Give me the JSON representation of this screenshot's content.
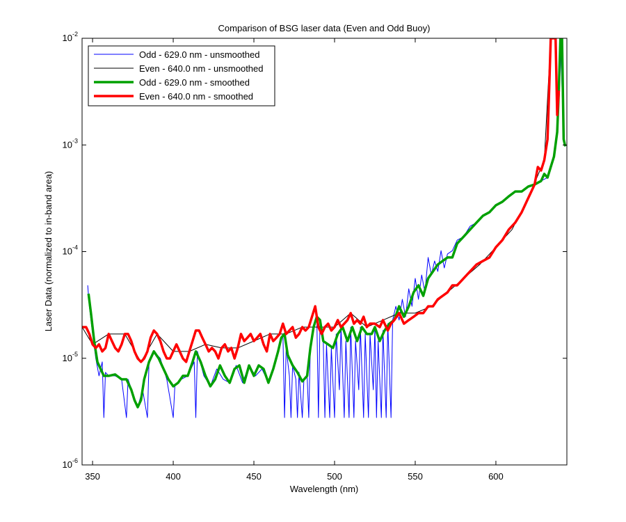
{
  "chart_data": {
    "type": "line",
    "title": "Comparison of BSG laser data (Even and Odd Buoy)",
    "x_label": "Wavelength (nm)",
    "y_label": "Laser Data (normalized to in-band area)",
    "xlim": [
      343.5,
      644
    ],
    "xticks": [
      350,
      400,
      450,
      500,
      550,
      600
    ],
    "ylim": [
      1e-06,
      0.01
    ],
    "log_y": true,
    "yticks": [
      {
        "value": 1e-06,
        "label": "10",
        "exponent": "-6"
      },
      {
        "value": 1e-05,
        "label": "10",
        "exponent": "-5"
      },
      {
        "value": 0.0001,
        "label": "10",
        "exponent": "-4"
      },
      {
        "value": 0.001,
        "label": "10",
        "exponent": "-3"
      },
      {
        "value": 0.01,
        "label": "10",
        "exponent": "-2"
      }
    ],
    "grid": false,
    "legend": "upper left",
    "series": [
      {
        "name": "Odd - 629.0 nm - unsmoothed",
        "color": "#0000ff",
        "line_width": 1,
        "x": [
          347,
          348,
          350,
          352,
          354,
          356,
          357,
          358,
          360,
          364,
          368,
          371,
          372,
          375,
          378,
          381,
          384,
          385,
          388,
          392,
          396,
          400,
          401,
          405,
          409,
          413,
          414,
          415,
          419,
          423,
          427,
          431,
          435,
          439,
          443,
          447,
          451,
          455,
          459,
          463,
          466,
          468,
          469,
          470,
          472,
          473,
          474,
          476,
          477,
          478,
          480,
          481,
          483,
          484,
          485,
          487,
          489,
          490,
          491,
          493,
          494,
          495,
          497,
          498,
          500,
          501,
          503,
          504,
          506,
          507,
          509,
          510,
          512,
          513,
          515,
          516,
          518,
          519,
          521,
          522,
          524,
          525,
          526,
          527,
          529,
          530,
          532,
          533,
          535,
          536,
          538,
          540,
          542,
          544,
          546,
          548,
          550,
          552,
          554,
          556,
          558,
          560,
          562,
          564,
          566,
          568,
          570,
          573,
          576,
          580,
          584,
          588,
          592,
          596,
          600,
          604,
          608,
          612,
          616,
          620,
          624,
          628,
          632,
          636,
          638,
          639,
          640,
          642,
          643
        ],
        "values": [
          4.83e-05,
          3.07e-05,
          1.69e-05,
          9.96e-06,
          6.84e-06,
          9.25e-06,
          2.78e-06,
          7.37e-06,
          6.84e-06,
          6.84e-06,
          6.35e-06,
          2.78e-06,
          6.35e-06,
          4.7e-06,
          3.48e-06,
          5.07e-06,
          2.78e-06,
          9.25e-06,
          1.16e-05,
          9.96e-06,
          6.35e-06,
          2.78e-06,
          5.46e-06,
          6.35e-06,
          6.84e-06,
          9.25e-06,
          2.78e-06,
          1.16e-05,
          6.84e-06,
          5.46e-06,
          7.94e-06,
          6.35e-06,
          5.89e-06,
          8.57e-06,
          5.89e-06,
          8.57e-06,
          6.84e-06,
          7.94e-06,
          5.89e-06,
          9.25e-06,
          1.35e-05,
          1.69e-05,
          2.78e-06,
          1.25e-05,
          6.84e-06,
          2.78e-06,
          8.57e-06,
          6.35e-06,
          2.78e-06,
          7.37e-06,
          2.78e-06,
          6.35e-06,
          6.84e-06,
          2.78e-06,
          1.25e-05,
          1.96e-05,
          2.45e-05,
          2.78e-06,
          2.28e-05,
          1.45e-05,
          2.78e-06,
          1.35e-05,
          2.78e-06,
          1.25e-05,
          2.78e-06,
          1.69e-05,
          5.07e-06,
          1.96e-05,
          2.78e-06,
          1.45e-05,
          2.78e-06,
          1.96e-05,
          2.78e-06,
          1.45e-05,
          5.07e-06,
          1.96e-05,
          2.78e-06,
          1.69e-05,
          2.78e-06,
          1.69e-05,
          5.07e-06,
          1.96e-05,
          2.78e-06,
          1.45e-05,
          2.78e-06,
          1.82e-05,
          2.78e-06,
          2.11e-05,
          2.78e-06,
          2.28e-05,
          3.07e-05,
          2.28e-05,
          3.57e-05,
          2.45e-05,
          4.48e-05,
          3.07e-05,
          5.61e-05,
          3.57e-05,
          6.04e-05,
          4.15e-05,
          8.81e-05,
          6.04e-05,
          8.17e-05,
          6.52e-05,
          0.000102,
          7.03e-05,
          9.5e-05,
          0.000102,
          0.000128,
          0.000138,
          0.000173,
          0.000187,
          0.000217,
          0.000234,
          0.000272,
          0.000293,
          0.00033,
          0.000366,
          0.000366,
          0.000407,
          0.000426,
          0.000459,
          0.000495,
          0.000778,
          0.00132,
          0.00324,
          0.01,
          0.00113,
          0.00097
        ]
      },
      {
        "name": "Even - 640.0 nm - unsmoothed",
        "color": "#000000",
        "line_width": 1,
        "x": [
          343.5,
          350,
          360,
          370,
          380,
          390,
          400,
          410,
          420,
          430,
          440,
          450,
          460,
          470,
          480,
          490,
          500,
          510,
          520,
          530,
          540,
          550,
          560,
          570,
          580,
          590,
          600,
          610,
          620,
          630,
          634
        ],
        "values": [
          1.96e-05,
          1.35e-05,
          1.69e-05,
          1.69e-05,
          9.25e-06,
          1.69e-05,
          1.16e-05,
          1.16e-05,
          1.35e-05,
          1.25e-05,
          1.25e-05,
          1.45e-05,
          1.69e-05,
          1.69e-05,
          1.96e-05,
          1.96e-05,
          1.96e-05,
          2.65e-05,
          1.96e-05,
          2.28e-05,
          2.65e-05,
          2.65e-05,
          3.07e-05,
          4.15e-05,
          5.61e-05,
          7.57e-05,
          0.00011,
          0.000161,
          0.000316,
          0.000721,
          0.01
        ]
      },
      {
        "name": "Odd - 629.0 nm - smoothed",
        "color": "#00a000",
        "line_width": 3.5,
        "x": [
          347.5,
          349,
          351,
          353,
          355,
          357,
          360,
          364,
          368,
          371,
          374,
          376,
          378,
          380,
          382,
          385,
          388,
          391,
          394,
          397,
          400,
          403,
          406,
          409,
          412,
          414,
          417,
          420,
          423,
          426,
          429,
          432,
          435,
          438,
          441,
          444,
          447,
          450,
          453,
          456,
          459,
          462,
          465,
          467,
          469,
          471,
          474,
          477,
          480,
          483,
          485,
          487,
          489,
          491,
          493,
          496,
          499,
          502,
          505,
          508,
          511,
          514,
          517,
          520,
          523,
          525,
          528,
          531,
          534,
          537,
          540,
          543,
          546,
          549,
          552,
          555,
          558,
          561,
          564,
          567,
          570,
          573,
          576,
          580,
          584,
          588,
          592,
          596,
          600,
          604,
          608,
          612,
          616,
          620,
          624,
          628,
          630,
          632,
          634,
          636,
          638,
          639,
          640,
          641,
          642,
          643
        ],
        "values": [
          4.03e-05,
          2.65e-05,
          1.45e-05,
          9.25e-06,
          7.94e-06,
          6.84e-06,
          6.84e-06,
          7.05e-06,
          6.35e-06,
          6.35e-06,
          5.07e-06,
          4.05e-06,
          3.48e-06,
          4.05e-06,
          6.35e-06,
          9.25e-06,
          1.16e-05,
          9.96e-06,
          7.94e-06,
          6.35e-06,
          5.46e-06,
          5.89e-06,
          6.84e-06,
          6.84e-06,
          9.25e-06,
          1.16e-05,
          9.25e-06,
          6.84e-06,
          5.46e-06,
          6.35e-06,
          8.57e-06,
          6.84e-06,
          5.89e-06,
          7.94e-06,
          8.57e-06,
          5.89e-06,
          8.57e-06,
          6.84e-06,
          8.57e-06,
          7.94e-06,
          5.89e-06,
          7.94e-06,
          1.16e-05,
          1.56e-05,
          1.69e-05,
          1.07e-05,
          8.57e-06,
          7.37e-06,
          6.07e-06,
          6.84e-06,
          1.25e-05,
          1.96e-05,
          2.45e-05,
          2.28e-05,
          1.45e-05,
          1.35e-05,
          1.25e-05,
          1.69e-05,
          1.96e-05,
          1.45e-05,
          1.96e-05,
          1.45e-05,
          1.96e-05,
          1.69e-05,
          1.69e-05,
          1.96e-05,
          1.45e-05,
          1.82e-05,
          2.11e-05,
          2.28e-05,
          3.07e-05,
          2.45e-05,
          3.07e-05,
          4.15e-05,
          4.83e-05,
          3.85e-05,
          5.61e-05,
          6.52e-05,
          7.57e-05,
          8.17e-05,
          8.81e-05,
          8.81e-05,
          0.000119,
          0.000138,
          0.000161,
          0.000187,
          0.000217,
          0.000234,
          0.000272,
          0.000293,
          0.00033,
          0.000366,
          0.000366,
          0.000407,
          0.000426,
          0.000459,
          0.000535,
          0.000495,
          0.000621,
          0.000778,
          0.00132,
          0.00324,
          0.01,
          0.01,
          0.00113,
          0.00097
        ]
      },
      {
        "name": "Even - 640.0 nm - smoothed",
        "color": "#ff0000",
        "line_width": 3.5,
        "x": [
          343.5,
          346,
          348,
          350,
          352,
          354,
          356,
          358,
          360,
          362,
          364,
          366,
          368,
          370,
          372,
          374,
          376,
          378,
          380,
          382,
          384,
          386,
          388,
          390,
          392,
          394,
          396,
          398,
          400,
          402,
          404,
          406,
          408,
          410,
          412,
          414,
          416,
          418,
          420,
          422,
          424,
          426,
          428,
          430,
          432,
          434,
          436,
          438,
          440,
          442,
          444,
          446,
          448,
          450,
          452,
          454,
          456,
          458,
          460,
          462,
          464,
          466,
          468,
          470,
          472,
          474,
          476,
          478,
          480,
          482,
          484,
          486,
          488,
          490,
          492,
          494,
          496,
          498,
          500,
          502,
          504,
          506,
          508,
          510,
          512,
          514,
          516,
          518,
          520,
          522,
          525,
          528,
          530,
          533,
          535,
          537,
          540,
          543,
          546,
          549,
          552,
          555,
          558,
          561,
          564,
          567,
          570,
          573,
          576,
          580,
          584,
          588,
          592,
          596,
          600,
          604,
          608,
          612,
          616,
          620,
          624,
          626,
          628,
          630,
          632,
          633,
          634,
          636,
          637,
          638,
          639
        ],
        "values": [
          1.96e-05,
          1.96e-05,
          1.69e-05,
          1.35e-05,
          1.25e-05,
          1.35e-05,
          1.16e-05,
          1.25e-05,
          1.69e-05,
          1.45e-05,
          1.25e-05,
          1.16e-05,
          1.35e-05,
          1.69e-05,
          1.69e-05,
          1.45e-05,
          1.16e-05,
          9.96e-06,
          9.25e-06,
          9.96e-06,
          1.16e-05,
          1.56e-05,
          1.82e-05,
          1.69e-05,
          1.45e-05,
          1.16e-05,
          9.96e-06,
          9.96e-06,
          1.16e-05,
          1.35e-05,
          1.16e-05,
          9.96e-06,
          9.25e-06,
          1.16e-05,
          1.45e-05,
          1.82e-05,
          1.82e-05,
          1.56e-05,
          1.35e-05,
          1.16e-05,
          1.25e-05,
          1.16e-05,
          9.96e-06,
          1.25e-05,
          1.35e-05,
          1.16e-05,
          1.25e-05,
          9.96e-06,
          1.25e-05,
          1.69e-05,
          1.45e-05,
          1.56e-05,
          1.69e-05,
          1.45e-05,
          1.56e-05,
          1.69e-05,
          1.35e-05,
          1.16e-05,
          1.69e-05,
          1.45e-05,
          1.56e-05,
          1.69e-05,
          2.11e-05,
          1.69e-05,
          1.82e-05,
          1.96e-05,
          1.56e-05,
          1.69e-05,
          1.96e-05,
          1.82e-05,
          1.96e-05,
          2.45e-05,
          3.07e-05,
          1.96e-05,
          1.69e-05,
          1.96e-05,
          2.11e-05,
          1.82e-05,
          1.96e-05,
          2.28e-05,
          1.96e-05,
          2.11e-05,
          2.28e-05,
          2.65e-05,
          2.11e-05,
          2.28e-05,
          2.11e-05,
          2.45e-05,
          1.96e-05,
          2.11e-05,
          2.11e-05,
          1.96e-05,
          2.28e-05,
          1.82e-05,
          2.11e-05,
          2.28e-05,
          2.65e-05,
          2.11e-05,
          2.28e-05,
          2.45e-05,
          2.65e-05,
          2.65e-05,
          3.07e-05,
          3.07e-05,
          3.57e-05,
          3.85e-05,
          4.15e-05,
          4.83e-05,
          4.83e-05,
          5.61e-05,
          6.52e-05,
          7.57e-05,
          8.17e-05,
          8.81e-05,
          0.00011,
          0.000128,
          0.000161,
          0.000187,
          0.000234,
          0.000316,
          0.000426,
          0.000621,
          0.000576,
          0.000721,
          0.00113,
          0.00324,
          0.01,
          0.01,
          0.01,
          0.00191,
          0.00324
        ]
      }
    ]
  }
}
